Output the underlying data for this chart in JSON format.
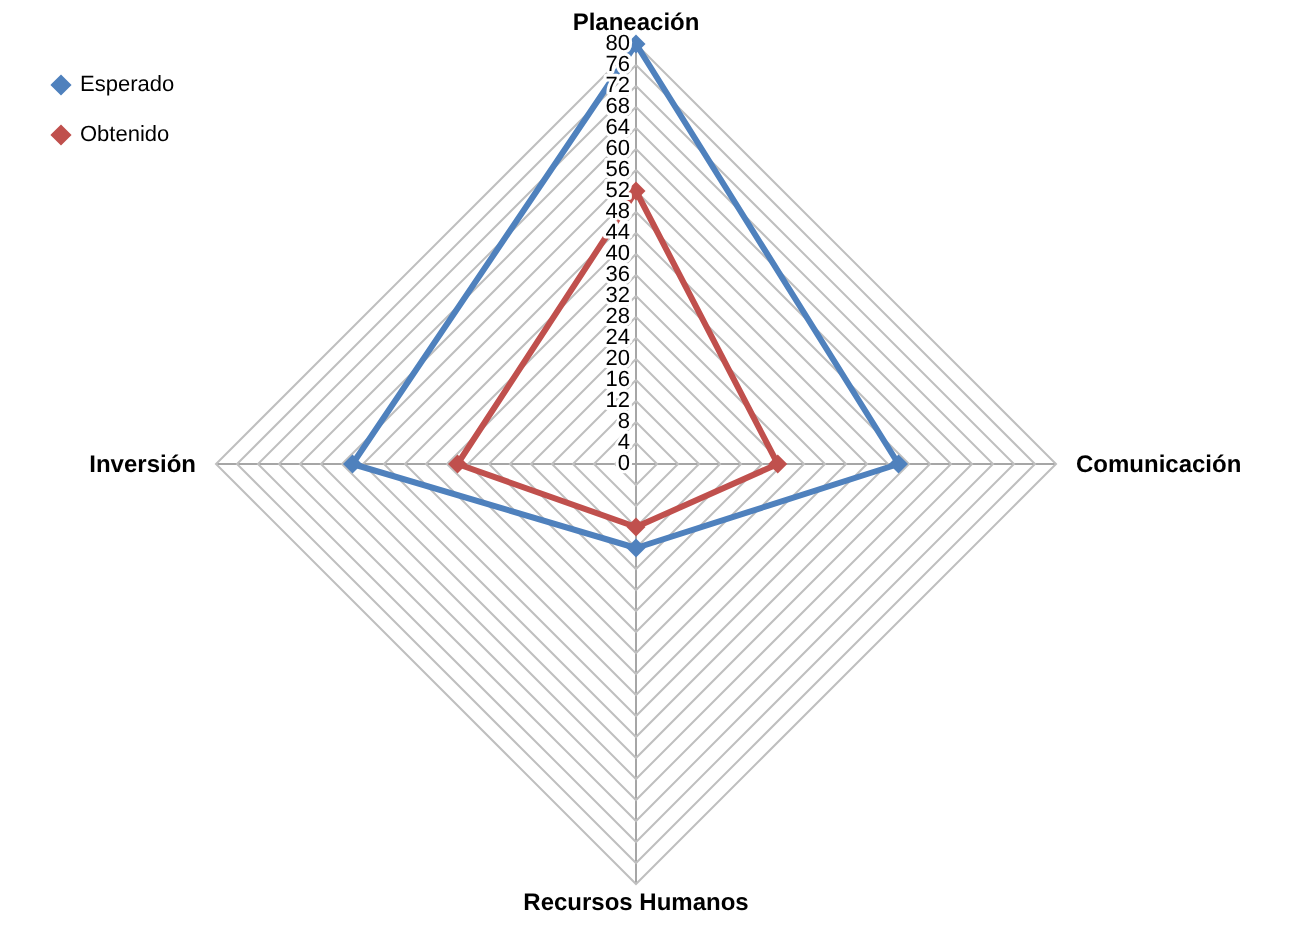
{
  "chart_data": {
    "type": "radar",
    "categories": [
      "Planeación",
      "Comunicación",
      "Recursos Humanos",
      "Inversión"
    ],
    "series": [
      {
        "name": "Esperado",
        "color": "#4f81bd",
        "values": [
          80,
          50,
          16,
          54
        ]
      },
      {
        "name": "Obtenido",
        "color": "#c0504d",
        "values": [
          52,
          27,
          12,
          34
        ]
      }
    ],
    "ylim": [
      0,
      80
    ],
    "yticks": [
      0,
      4,
      8,
      12,
      16,
      20,
      24,
      28,
      32,
      36,
      40,
      44,
      48,
      52,
      56,
      60,
      64,
      68,
      72,
      76,
      80
    ],
    "grid": true,
    "legend": "top left",
    "marker": "diamond",
    "line_style": "solid"
  }
}
